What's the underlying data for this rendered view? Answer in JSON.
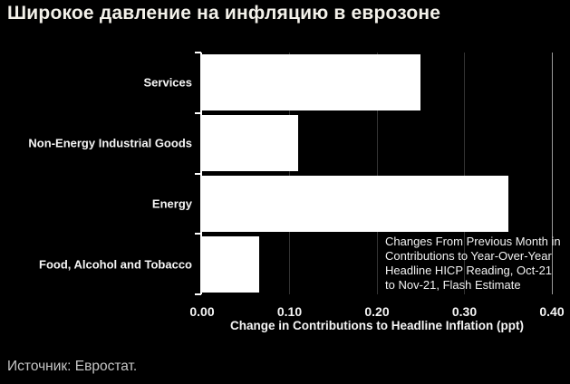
{
  "page": {
    "source": "Источник: Евростат."
  },
  "chart_data": {
    "type": "bar",
    "orientation": "horizontal",
    "title": "Широкое давление на инфляцию в еврозоне",
    "categories": [
      "Services",
      "Non-Energy Industrial Goods",
      "Energy",
      "Food, Alcohol and Tobacco"
    ],
    "values": [
      0.25,
      0.11,
      0.35,
      0.065
    ],
    "xlabel": "Change in Contributions to Headline Inflation (ppt)",
    "xlim": [
      0,
      0.4
    ],
    "xticks": [
      {
        "value": 0.0,
        "label": "0.00"
      },
      {
        "value": 0.1,
        "label": "0.10"
      },
      {
        "value": 0.2,
        "label": "0.20"
      },
      {
        "value": 0.3,
        "label": "0.30"
      },
      {
        "value": 0.4,
        "label": "0.40"
      }
    ],
    "grid": true,
    "legend": false,
    "annotation": "Changes From Previous Month in\nContributions to Year-Over-Year\nHeadline HICP Reading, Oct-21\nto Nov-21, Flash Estimate",
    "colors": {
      "background": "#000000",
      "bar": "#ffffff",
      "gridline": "#333333",
      "right_border_line": "#999999",
      "axis": "#ffffff",
      "title_text": "#f3f1ea",
      "label_text": "#f5f5f5",
      "source_text": "#c6c6c6"
    }
  }
}
